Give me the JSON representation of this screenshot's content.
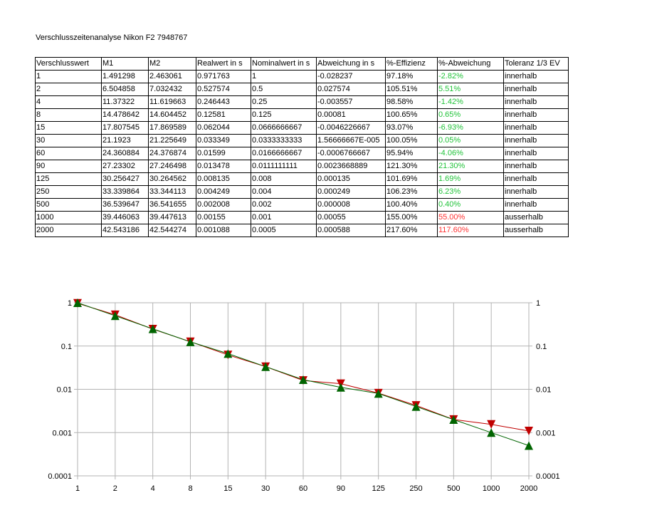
{
  "sheet": {
    "title": "Verschlusszeitenanalyse Nikon F2 7948767",
    "headers": [
      "Verschlusswert",
      "M1",
      "M2",
      "Realwert in s",
      "Nominalwert in s",
      "Abweichung in s",
      "%-Effizienz",
      "%-Abweichung",
      "Toleranz 1/3 EV"
    ],
    "rows": [
      [
        "1",
        "1.491298",
        "2.463061",
        "0.971763",
        "1",
        "-0.028237",
        "97.18%",
        "-2.82%",
        "innerhalb"
      ],
      [
        "2",
        "6.504858",
        "7.032432",
        "0.527574",
        "0.5",
        "0.027574",
        "105.51%",
        "5.51%",
        "innerhalb"
      ],
      [
        "4",
        "11.37322",
        "11.619663",
        "0.246443",
        "0.25",
        "-0.003557",
        "98.58%",
        "-1.42%",
        "innerhalb"
      ],
      [
        "8",
        "14.478642",
        "14.604452",
        "0.12581",
        "0.125",
        "0.00081",
        "100.65%",
        "0.65%",
        "innerhalb"
      ],
      [
        "15",
        "17.807545",
        "17.869589",
        "0.062044",
        "0.0666666667",
        "-0.0046226667",
        "93.07%",
        "-6.93%",
        "innerhalb"
      ],
      [
        "30",
        "21.1923",
        "21.225649",
        "0.033349",
        "0.0333333333",
        "1.56666667E-005",
        "100.05%",
        "0.05%",
        "innerhalb"
      ],
      [
        "60",
        "24.360884",
        "24.376874",
        "0.01599",
        "0.0166666667",
        "-0.0006766667",
        "95.94%",
        "-4.06%",
        "innerhalb"
      ],
      [
        "90",
        "27.23302",
        "27.246498",
        "0.013478",
        "0.0111111111",
        "0.0023668889",
        "121.30%",
        "21.30%",
        "innerhalb"
      ],
      [
        "125",
        "30.256427",
        "30.264562",
        "0.008135",
        "0.008",
        "0.000135",
        "101.69%",
        "1.69%",
        "innerhalb"
      ],
      [
        "250",
        "33.339864",
        "33.344113",
        "0.004249",
        "0.004",
        "0.000249",
        "106.23%",
        "6.23%",
        "innerhalb"
      ],
      [
        "500",
        "36.539647",
        "36.541655",
        "0.002008",
        "0.002",
        "0.000008",
        "100.40%",
        "0.40%",
        "innerhalb"
      ],
      [
        "1000",
        "39.446063",
        "39.447613",
        "0.00155",
        "0.001",
        "0.00055",
        "155.00%",
        "55.00%",
        "ausserhalb"
      ],
      [
        "2000",
        "42.543186",
        "42.544274",
        "0.001088",
        "0.0005",
        "0.000588",
        "217.60%",
        "117.60%",
        "ausserhalb"
      ]
    ],
    "deviation_colors": {
      "inside": "#22c33a",
      "outside": "#ff3333"
    }
  },
  "chart_data": {
    "type": "line",
    "categories": [
      "1",
      "2",
      "4",
      "8",
      "15",
      "30",
      "60",
      "90",
      "125",
      "250",
      "500",
      "1000",
      "2000"
    ],
    "series": [
      {
        "values": [
          0.971763,
          0.527574,
          0.246443,
          0.12581,
          0.062044,
          0.033349,
          0.01599,
          0.013478,
          0.008135,
          0.004249,
          0.002008,
          0.00155,
          0.001088
        ],
        "color": "#c00000",
        "marker": "triangle-down"
      },
      {
        "values": [
          1,
          0.5,
          0.25,
          0.125,
          0.0666666667,
          0.0333333333,
          0.0166666667,
          0.0111111111,
          0.008,
          0.004,
          0.002,
          0.001,
          0.0005
        ],
        "color": "#006400",
        "marker": "triangle-up"
      }
    ],
    "y_scale": "log",
    "ylim": [
      0.0001,
      1
    ],
    "y_ticks": [
      "1",
      "0.1",
      "0.01",
      "0.001",
      "0.0001"
    ],
    "secondary_y_ticks": [
      "1",
      "0.1",
      "0.01",
      "0.001",
      "0.0001"
    ],
    "grid": true,
    "legend": "none"
  }
}
